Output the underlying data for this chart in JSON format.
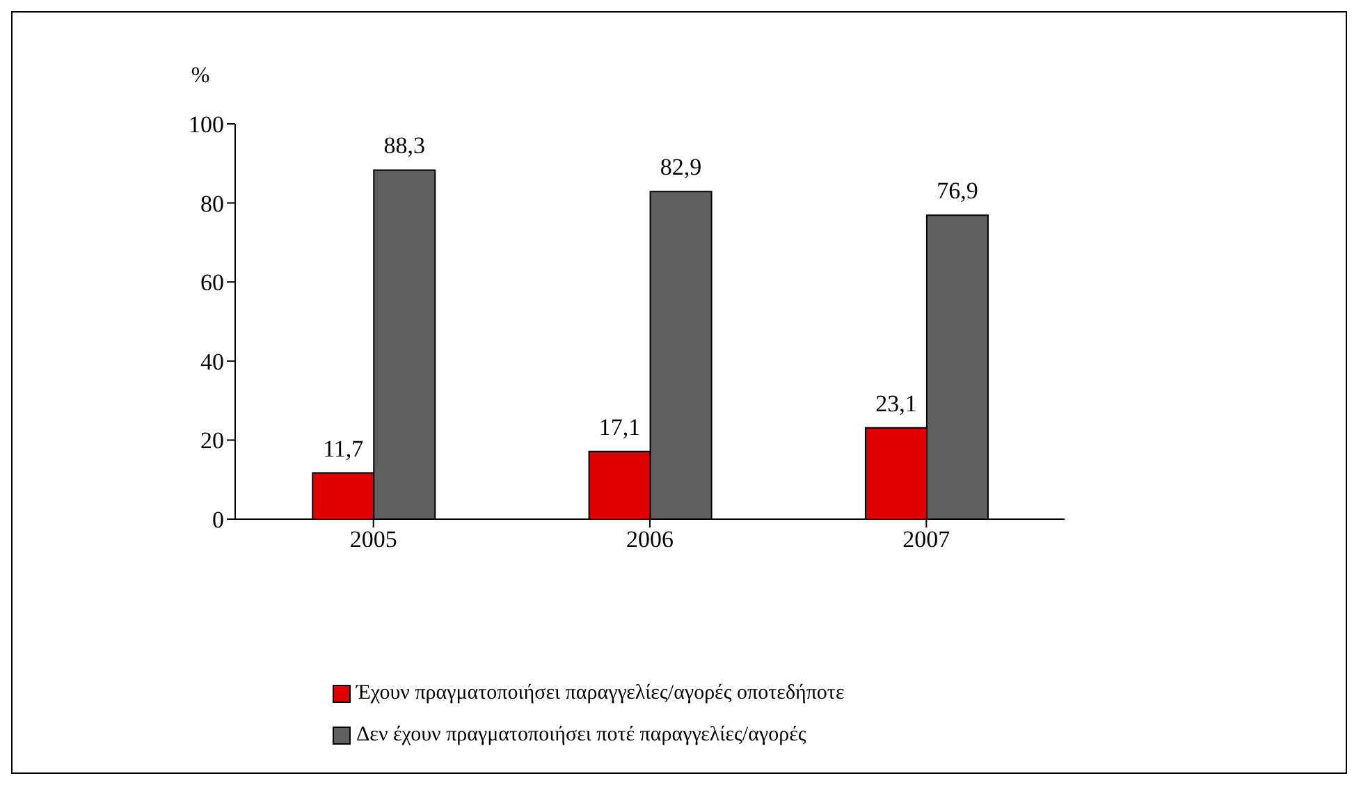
{
  "chart_data": {
    "type": "bar",
    "ylabel": "%",
    "categories": [
      "2005",
      "2006",
      "2007"
    ],
    "series": [
      {
        "name": "Έχουν πραγματοποιήσει παραγγελίες/αγορές οποτεδήποτε",
        "color": "#e00000",
        "values": [
          11.7,
          17.1,
          23.1
        ],
        "value_labels": [
          "11,7",
          "17,1",
          "23,1"
        ]
      },
      {
        "name": "Δεν έχουν πραγματοποιήσει ποτέ παραγγελίες/αγορές",
        "color": "#606060",
        "values": [
          88.3,
          82.9,
          76.9
        ],
        "value_labels": [
          "88,3",
          "82,9",
          "76,9"
        ]
      }
    ],
    "ylim": [
      0,
      100
    ],
    "yticks": [
      0,
      20,
      40,
      60,
      80,
      100
    ],
    "grid": false,
    "legend": "bottom"
  }
}
